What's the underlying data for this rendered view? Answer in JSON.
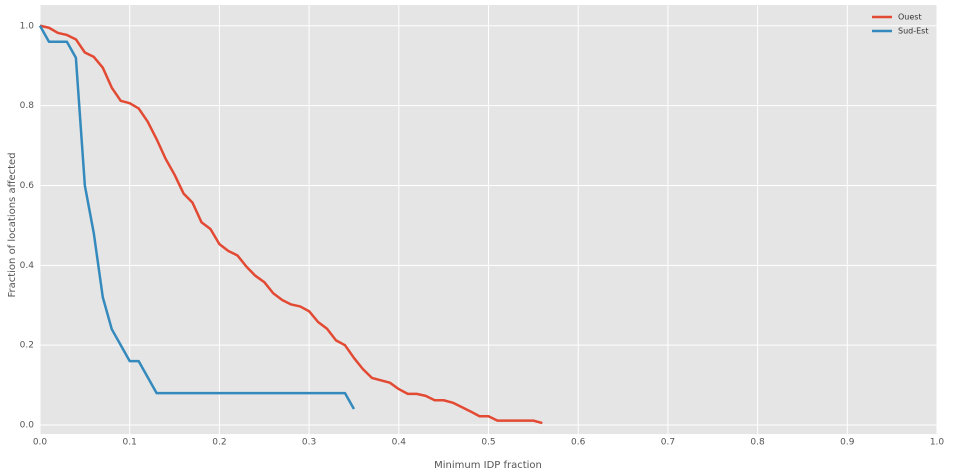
{
  "chart_data": {
    "type": "line",
    "xlabel": "Minimum IDP fraction",
    "ylabel": "Fraction of locations affected",
    "xlim": [
      0,
      1
    ],
    "ylim": [
      -0.0225,
      1.052
    ],
    "xticks": [
      {
        "value": 0,
        "label": "0.0"
      },
      0.1,
      0.2,
      0.3,
      0.4,
      0.5,
      0.6,
      0.7,
      0.8,
      0.9,
      {
        "value": 1,
        "label": "1.0"
      }
    ],
    "yticks": [
      {
        "value": 0,
        "label": "0.0"
      },
      0.2,
      0.4,
      0.6,
      0.8,
      {
        "value": 1,
        "label": "1.0"
      }
    ],
    "grid": true,
    "legend": "upper right",
    "series": [
      {
        "name": "Ouest",
        "color": "#e24a33",
        "x": [
          0,
          0.01,
          0.02,
          0.03,
          0.04,
          0.05,
          0.06,
          0.07,
          0.08,
          0.09,
          0.1,
          0.11,
          0.12,
          0.13,
          0.14,
          0.15,
          0.16,
          0.17,
          0.18,
          0.19,
          0.2,
          0.21,
          0.22,
          0.23,
          0.24,
          0.25,
          0.26,
          0.27,
          0.28,
          0.29,
          0.3,
          0.31,
          0.32,
          0.33,
          0.34,
          0.35,
          0.36,
          0.37,
          0.38,
          0.39,
          0.4,
          0.41,
          0.42,
          0.43,
          0.44,
          0.45,
          0.46,
          0.47,
          0.48,
          0.49,
          0.5,
          0.51,
          0.52,
          0.53,
          0.54,
          0.55,
          0.56
        ],
        "values": [
          1.0,
          0.995,
          0.982,
          0.977,
          0.966,
          0.933,
          0.922,
          0.895,
          0.845,
          0.812,
          0.806,
          0.793,
          0.76,
          0.716,
          0.667,
          0.627,
          0.58,
          0.557,
          0.508,
          0.491,
          0.453,
          0.436,
          0.425,
          0.397,
          0.374,
          0.358,
          0.33,
          0.313,
          0.302,
          0.297,
          0.285,
          0.258,
          0.241,
          0.212,
          0.2,
          0.168,
          0.14,
          0.118,
          0.112,
          0.106,
          0.09,
          0.078,
          0.078,
          0.073,
          0.062,
          0.062,
          0.056,
          0.045,
          0.034,
          0.022,
          0.022,
          0.011,
          0.011,
          0.011,
          0.011,
          0.011,
          0.005
        ]
      },
      {
        "name": "Sud-Est",
        "color": "#348abd",
        "x": [
          0,
          0.01,
          0.02,
          0.03,
          0.04,
          0.05,
          0.06,
          0.07,
          0.08,
          0.09,
          0.1,
          0.11,
          0.12,
          0.13,
          0.14,
          0.15,
          0.16,
          0.17,
          0.18,
          0.19,
          0.2,
          0.21,
          0.22,
          0.23,
          0.24,
          0.25,
          0.26,
          0.27,
          0.28,
          0.29,
          0.3,
          0.31,
          0.32,
          0.33,
          0.34,
          0.35
        ],
        "values": [
          1.0,
          0.96,
          0.96,
          0.96,
          0.92,
          0.6,
          0.48,
          0.32,
          0.24,
          0.2,
          0.16,
          0.16,
          0.12,
          0.08,
          0.08,
          0.08,
          0.08,
          0.08,
          0.08,
          0.08,
          0.08,
          0.08,
          0.08,
          0.08,
          0.08,
          0.08,
          0.08,
          0.08,
          0.08,
          0.08,
          0.08,
          0.08,
          0.08,
          0.08,
          0.08,
          0.04
        ]
      }
    ]
  }
}
